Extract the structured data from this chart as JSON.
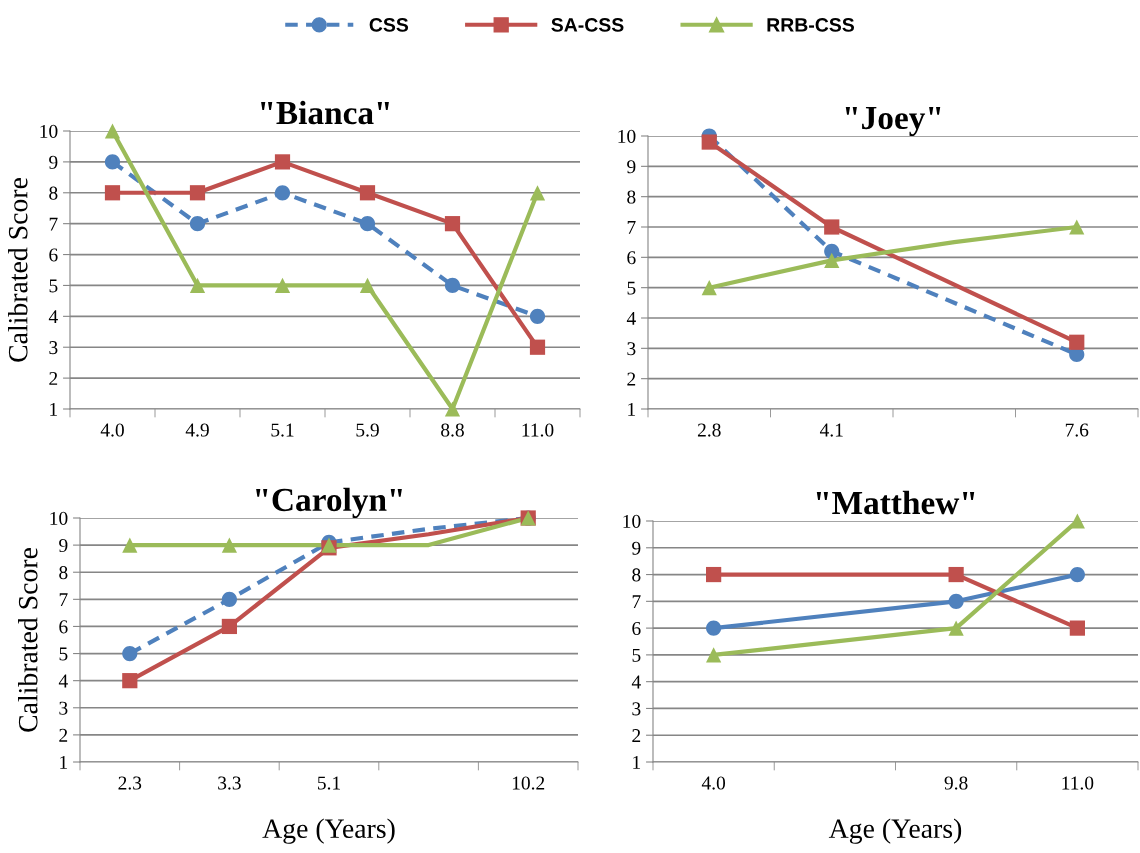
{
  "chart_data": [
    {
      "type": "line",
      "title": "\"Bianca\"",
      "ylabel": "Calibrated Score",
      "categories": [
        "4.0",
        "4.9",
        "5.1",
        "5.9",
        "8.8",
        "11.0"
      ],
      "ylim": [
        1,
        10
      ],
      "yticks": [
        1,
        2,
        3,
        4,
        5,
        6,
        7,
        8,
        9,
        10
      ],
      "grid": "y",
      "legend": "top",
      "series": [
        {
          "name": "CSS",
          "color": "#4f81bd",
          "marker": "circle",
          "line_style": "dashed",
          "values": [
            9,
            7,
            8,
            7,
            5,
            4
          ]
        },
        {
          "name": "SA-CSS",
          "color": "#c0504d",
          "marker": "square",
          "line_style": "solid",
          "values": [
            8,
            8,
            9,
            8,
            7,
            3
          ]
        },
        {
          "name": "RRB-CSS",
          "color": "#9bbb59",
          "marker": "triangle",
          "line_style": "solid",
          "values": [
            10,
            5,
            5,
            5,
            1,
            8
          ]
        }
      ]
    },
    {
      "type": "line",
      "title": "\"Joey\"",
      "categories": [
        "2.8",
        "4.1",
        null,
        "7.6"
      ],
      "ylim": [
        1,
        10
      ],
      "yticks": [
        1,
        2,
        3,
        4,
        5,
        6,
        7,
        8,
        9,
        10
      ],
      "grid": "y",
      "series": [
        {
          "color": "#4f81bd",
          "marker": "circle",
          "line_style": "dashed",
          "values": [
            10,
            6.2,
            null,
            2.8
          ]
        },
        {
          "color": "#c0504d",
          "marker": "square",
          "line_style": "solid",
          "values": [
            9.8,
            7,
            null,
            3.2
          ]
        },
        {
          "color": "#9bbb59",
          "marker": "triangle",
          "line_style": "solid",
          "values": [
            5,
            5.9,
            6.5,
            7
          ]
        }
      ]
    },
    {
      "type": "line",
      "title": "\"Carolyn\"",
      "ylabel": "Calibrated Score",
      "xlabel": "Age (Years)",
      "categories": [
        "2.3",
        "3.3",
        "5.1",
        null,
        "10.2"
      ],
      "ylim": [
        1,
        10
      ],
      "yticks": [
        1,
        2,
        3,
        4,
        5,
        6,
        7,
        8,
        9,
        10
      ],
      "grid": "y",
      "series": [
        {
          "color": "#4f81bd",
          "marker": "circle",
          "line_style": "dashed",
          "values": [
            5,
            7,
            9.1,
            9.6,
            10
          ]
        },
        {
          "color": "#c0504d",
          "marker": "square",
          "line_style": "solid",
          "values": [
            4,
            6,
            8.9,
            9.4,
            10
          ]
        },
        {
          "color": "#9bbb59",
          "marker": "triangle",
          "line_style": "solid",
          "values": [
            9,
            9,
            9,
            9,
            10
          ]
        }
      ]
    },
    {
      "type": "line",
      "title": "\"Matthew\"",
      "xlabel": "Age (Years)",
      "categories": [
        "4.0",
        null,
        "9.8",
        "11.0"
      ],
      "ylim": [
        1,
        10
      ],
      "yticks": [
        1,
        2,
        3,
        4,
        5,
        6,
        7,
        8,
        9,
        10
      ],
      "grid": "y",
      "series": [
        {
          "color": "#4f81bd",
          "marker": "circle",
          "line_style": "solid",
          "values": [
            6,
            null,
            7,
            8
          ]
        },
        {
          "color": "#c0504d",
          "marker": "square",
          "line_style": "solid",
          "values": [
            8,
            null,
            8,
            6
          ]
        },
        {
          "color": "#9bbb59",
          "marker": "triangle",
          "line_style": "solid",
          "values": [
            5,
            null,
            6,
            10
          ]
        }
      ]
    }
  ]
}
